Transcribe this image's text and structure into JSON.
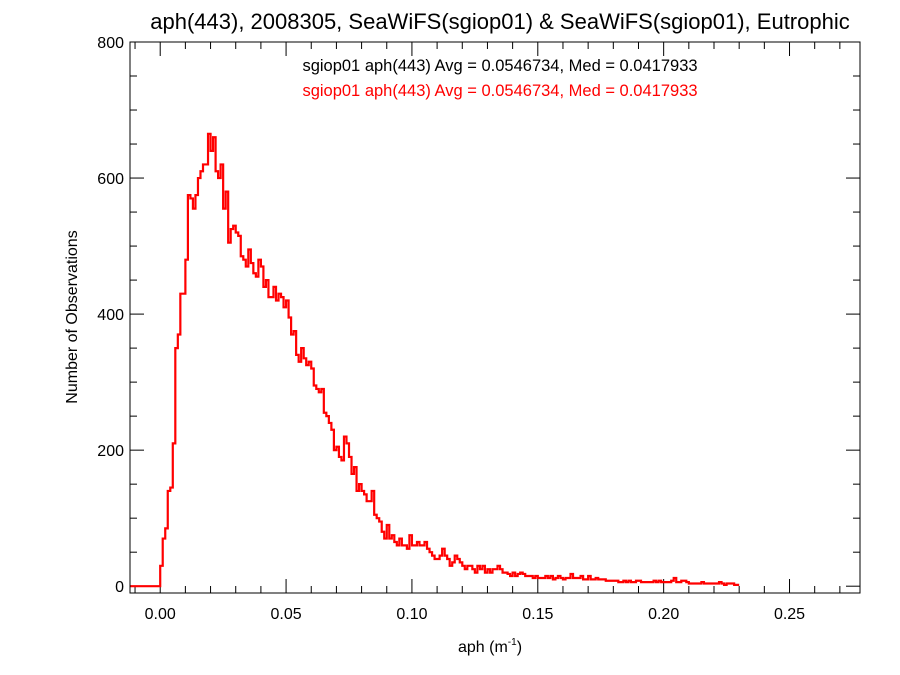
{
  "chart_data": {
    "type": "histogram",
    "title": "aph(443), 2008305, SeaWiFS(sgiop01) & SeaWiFS(sgiop01), Eutrophic",
    "xlabel": "aph (m",
    "xlabel_sup": "-1",
    "xlabel_close": ")",
    "ylabel": "Number of Observations",
    "xlim": [
      -0.012,
      0.278
    ],
    "ylim": [
      -10,
      800
    ],
    "xticks": [
      0.0,
      0.05,
      0.1,
      0.15,
      0.2,
      0.25
    ],
    "xtick_labels": [
      "0.00",
      "0.05",
      "0.10",
      "0.15",
      "0.20",
      "0.25"
    ],
    "yticks": [
      0,
      200,
      400,
      600,
      800
    ],
    "ytick_labels": [
      "0",
      "200",
      "400",
      "600",
      "800"
    ],
    "annotations": [
      {
        "text": "sgiop01 aph(443) Avg = 0.0546734, Med = 0.0417933",
        "color": "#000000"
      },
      {
        "text": "sgiop01 aph(443) Avg = 0.0546734, Med = 0.0417933",
        "color": "#ff0000"
      }
    ],
    "series": [
      {
        "color": "#ff0000",
        "bin_width": 0.001,
        "x_start": -0.012,
        "values": [
          0,
          0,
          0,
          0,
          0,
          0,
          0,
          0,
          0,
          0,
          0,
          0,
          30,
          70,
          85,
          140,
          145,
          210,
          350,
          370,
          430,
          430,
          480,
          575,
          570,
          555,
          575,
          600,
          610,
          620,
          620,
          665,
          640,
          660,
          610,
          600,
          620,
          555,
          580,
          505,
          525,
          530,
          520,
          515,
          485,
          480,
          470,
          495,
          475,
          460,
          455,
          480,
          470,
          440,
          450,
          425,
          425,
          440,
          420,
          430,
          425,
          410,
          420,
          395,
          370,
          375,
          340,
          330,
          350,
          335,
          325,
          330,
          320,
          295,
          290,
          285,
          290,
          255,
          250,
          240,
          230,
          200,
          205,
          190,
          185,
          220,
          210,
          190,
          165,
          175,
          140,
          150,
          140,
          135,
          125,
          125,
          140,
          105,
          100,
          95,
          80,
          70,
          90,
          70,
          75,
          65,
          60,
          70,
          60,
          60,
          55,
          75,
          60,
          60,
          65,
          60,
          60,
          65,
          55,
          50,
          45,
          40,
          40,
          45,
          55,
          45,
          40,
          30,
          35,
          45,
          40,
          35,
          30,
          25,
          30,
          30,
          25,
          20,
          30,
          25,
          30,
          20,
          25,
          20,
          25,
          25,
          30,
          25,
          20,
          20,
          18,
          15,
          20,
          15,
          18,
          20,
          18,
          15,
          15,
          15,
          12,
          15,
          12,
          12,
          12,
          15,
          12,
          15,
          10,
          12,
          15,
          12,
          10,
          12,
          12,
          18,
          12,
          12,
          12,
          15,
          10,
          10,
          15,
          10,
          10,
          12,
          10,
          10,
          10,
          8,
          8,
          8,
          8,
          8,
          6,
          6,
          8,
          6,
          8,
          6,
          6,
          8,
          8,
          6,
          6,
          6,
          6,
          6,
          8,
          6,
          8,
          6,
          6,
          6,
          6,
          8,
          12,
          6,
          6,
          8,
          8,
          6,
          4,
          4,
          4,
          4,
          4,
          6,
          4,
          4,
          4,
          4,
          4,
          4,
          6,
          4,
          2,
          4,
          4,
          4,
          2,
          2
        ]
      }
    ]
  }
}
